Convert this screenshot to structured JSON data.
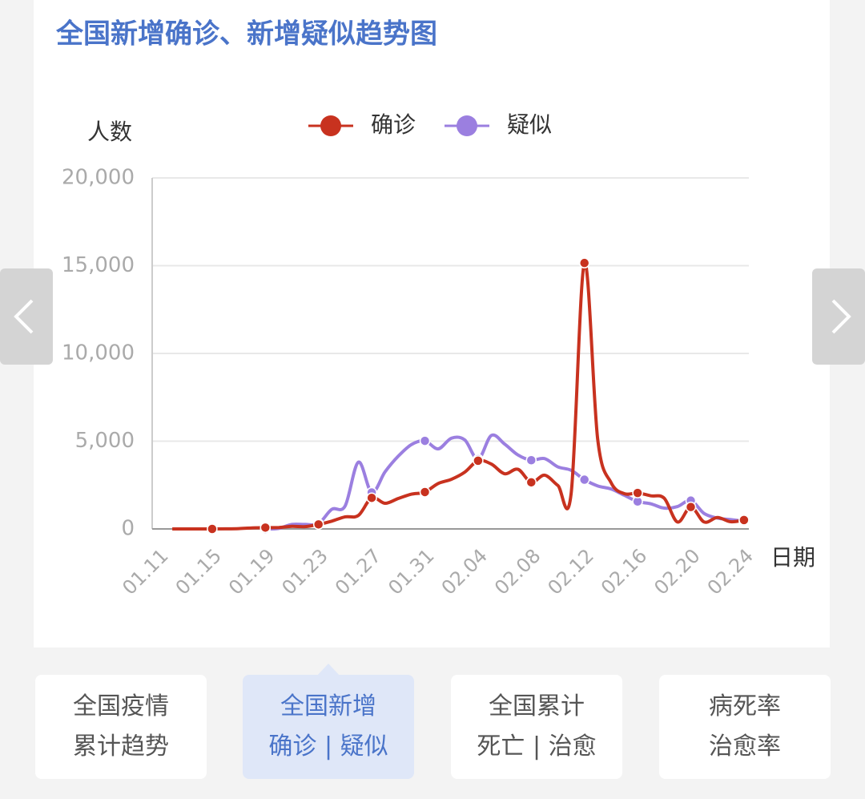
{
  "chart_data": {
    "type": "line",
    "title": "全国新增确诊、新增疑似趋势图",
    "y_label": "人数",
    "x_label": "日期",
    "categories": [
      "01.11",
      null,
      null,
      null,
      "01.15",
      null,
      null,
      null,
      "01.19",
      null,
      null,
      null,
      "01.23",
      null,
      null,
      null,
      "01.27",
      null,
      null,
      null,
      "01.31",
      null,
      null,
      null,
      "02.04",
      null,
      null,
      null,
      "02.08",
      null,
      null,
      null,
      "02.12",
      null,
      null,
      null,
      "02.16",
      null,
      null,
      null,
      "02.20",
      null,
      null,
      null,
      "02.24"
    ],
    "series": [
      {
        "name": "确诊",
        "color": "#c8321f",
        "values": [
          null,
          0,
          0,
          0,
          0,
          4,
          17,
          59,
          77,
          77,
          149,
          131,
          259,
          444,
          688,
          769,
          1771,
          1459,
          1737,
          1982,
          2102,
          2590,
          2829,
          3235,
          3887,
          3694,
          3143,
          3399,
          2656,
          3062,
          2478,
          2015,
          15152,
          5090,
          2641,
          2009,
          2048,
          1886,
          1749,
          394,
          1250,
          397,
          648,
          409,
          508
        ]
      },
      {
        "name": "疑似",
        "color": "#9b7fe0",
        "values": [
          null,
          null,
          null,
          null,
          null,
          null,
          null,
          null,
          0,
          27,
          257,
          257,
          300,
          1118,
          1309,
          3806,
          2077,
          3248,
          4148,
          4812,
          5019,
          4562,
          5173,
          5072,
          3971,
          5328,
          4833,
          4214,
          3916,
          4008,
          3536,
          3342,
          2807,
          2450,
          2277,
          1918,
          1563,
          1432,
          1185,
          1277,
          1614,
          882,
          620,
          530,
          439
        ]
      }
    ],
    "ylim": [
      0,
      20000
    ],
    "yticks": [
      0,
      {
        "value": 5000,
        "label": "5,000"
      },
      {
        "value": 10000,
        "label": "10,000"
      },
      {
        "value": 15000,
        "label": "15,000"
      },
      {
        "value": 20000,
        "label": "20,000"
      }
    ],
    "grid": true,
    "legend": "top"
  },
  "tabs": [
    {
      "lines": [
        "全国疫情",
        "累计趋势"
      ]
    },
    {
      "lines": [
        "全国新增",
        "确诊 | 疑似"
      ],
      "active": true
    },
    {
      "lines": [
        "全国累计",
        "死亡 | 治愈"
      ]
    },
    {
      "lines": [
        "病死率",
        "治愈率"
      ]
    }
  ]
}
